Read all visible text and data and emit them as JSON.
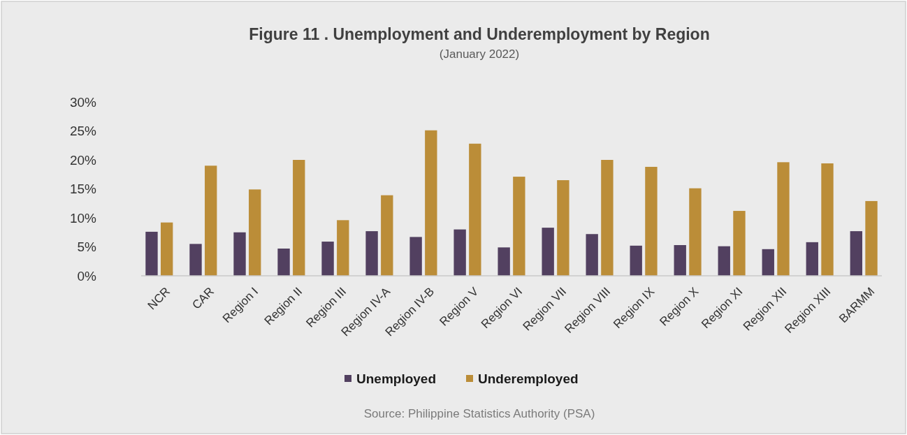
{
  "chart_data": {
    "type": "bar",
    "title": "Figure 11 . Unemployment and Underemployment by Region",
    "subtitle": "(January 2022)",
    "categories": [
      "NCR",
      "CAR",
      "Region I",
      "Region II",
      "Region III",
      "Region IV-A",
      "Region IV-B",
      "Region V",
      "Region VI",
      "Region VII",
      "Region VIII",
      "Region IX",
      "Region X",
      "Region XI",
      "Region XII",
      "Region XIII",
      "BARMM"
    ],
    "series": [
      {
        "name": "Unemployed",
        "color": "#524060",
        "values": [
          7.6,
          5.5,
          7.5,
          4.7,
          5.9,
          7.7,
          6.7,
          8.0,
          4.9,
          8.3,
          7.2,
          5.2,
          5.3,
          5.1,
          4.6,
          5.8,
          7.7
        ]
      },
      {
        "name": "Underemployed",
        "color": "#bb8d38",
        "values": [
          9.2,
          19.0,
          14.9,
          20.0,
          9.6,
          13.9,
          25.1,
          22.8,
          17.1,
          16.5,
          20.0,
          18.8,
          15.1,
          11.2,
          19.6,
          19.4,
          12.9
        ]
      }
    ],
    "ylim": [
      0,
      30
    ],
    "yticks": [
      {
        "value": 0,
        "label": "0%"
      },
      {
        "value": 5,
        "label": "5%"
      },
      {
        "value": 10,
        "label": "10%"
      },
      {
        "value": 15,
        "label": "15%"
      },
      {
        "value": 20,
        "label": "20%"
      },
      {
        "value": 25,
        "label": "25%"
      },
      {
        "value": 30,
        "label": "30%"
      }
    ],
    "grid": false,
    "legend": "bottom",
    "annotations": [
      "Source: Philippine Statistics Authority (PSA)"
    ]
  }
}
